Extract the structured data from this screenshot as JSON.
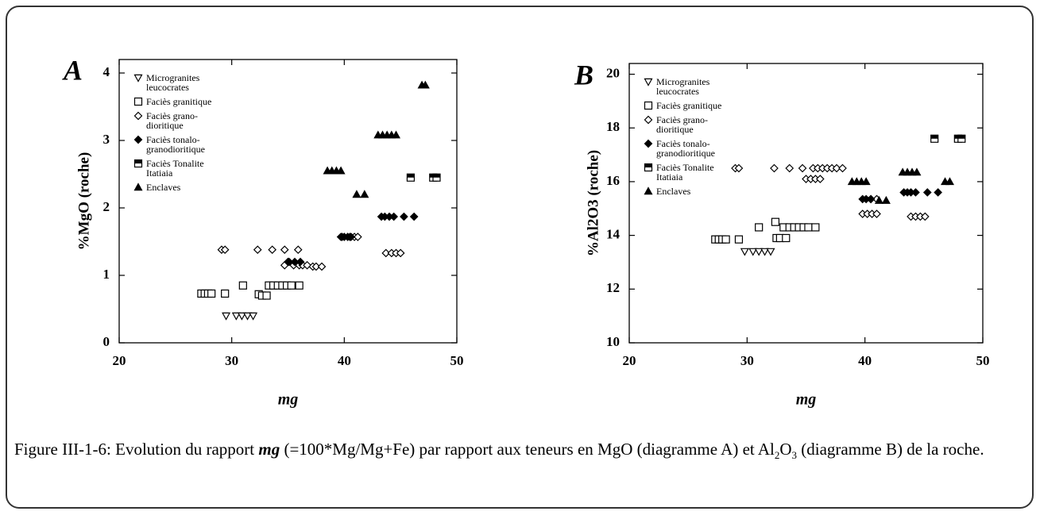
{
  "chart_data": [
    {
      "type": "scatter",
      "label": "A",
      "x_label": "mg",
      "y_label": "%MgO (roche)",
      "xlim": [
        20,
        50
      ],
      "ylim": [
        0,
        4.2
      ],
      "xticks": [
        20,
        30,
        40,
        50
      ],
      "yticks": [
        0,
        1,
        2,
        3,
        4
      ],
      "series": [
        {
          "name": "Microgranites leucocrates",
          "marker": "triangle-down-open",
          "color": "#000000",
          "x": [
            29.5,
            30.4,
            30.9,
            31.4,
            31.9
          ],
          "y": [
            0.4,
            0.4,
            0.4,
            0.4,
            0.4
          ]
        },
        {
          "name": "Faciès granitique",
          "marker": "square-open",
          "color": "#000000",
          "x": [
            27.3,
            27.6,
            27.9,
            28.2,
            29.4,
            31,
            32.4,
            32.7,
            33.1,
            33.3,
            33.7,
            34.1,
            34.5,
            34.9,
            35.3,
            36
          ],
          "y": [
            0.73,
            0.73,
            0.73,
            0.73,
            0.73,
            0.85,
            0.72,
            0.7,
            0.7,
            0.85,
            0.85,
            0.85,
            0.85,
            0.85,
            0.85,
            0.85
          ]
        },
        {
          "name": "Faciès grano-dioritique",
          "marker": "diamond-open",
          "color": "#000000",
          "x": [
            29.1,
            29.4,
            32.3,
            33.6,
            34.7,
            35.9,
            34.7,
            35,
            35.5,
            36,
            36.3,
            36.7,
            37.2,
            37.5,
            38,
            39.8,
            40.5,
            40.9,
            41.2,
            43.7,
            44.2,
            44.6,
            45
          ],
          "y": [
            1.38,
            1.38,
            1.38,
            1.38,
            1.38,
            1.38,
            1.15,
            1.2,
            1.15,
            1.15,
            1.15,
            1.15,
            1.13,
            1.13,
            1.13,
            1.57,
            1.57,
            1.57,
            1.57,
            1.33,
            1.33,
            1.33,
            1.33
          ]
        },
        {
          "name": "Faciès tonalo-granodioritique",
          "marker": "diamond",
          "color": "#000000",
          "x": [
            35.1,
            35.6,
            36.1,
            39.7,
            40,
            40.3,
            40.6,
            43.3,
            43.6,
            44,
            44.4,
            45.3,
            46.2
          ],
          "y": [
            1.2,
            1.2,
            1.2,
            1.57,
            1.57,
            1.57,
            1.57,
            1.87,
            1.87,
            1.87,
            1.87,
            1.87,
            1.87
          ]
        },
        {
          "name": "Faciès Tonalite Itatiaia",
          "marker": "square-half",
          "color": "#000000",
          "x": [
            45.9,
            47.9,
            48.2
          ],
          "y": [
            2.45,
            2.45,
            2.45
          ]
        },
        {
          "name": "Enclaves",
          "marker": "triangle",
          "color": "#000000",
          "x": [
            38.5,
            38.9,
            39.3,
            39.7,
            41.1,
            41.8,
            43,
            43.4,
            43.8,
            44.2,
            44.6,
            46.9,
            47.2
          ],
          "y": [
            2.55,
            2.55,
            2.55,
            2.55,
            2.2,
            2.2,
            3.08,
            3.08,
            3.08,
            3.08,
            3.08,
            3.82,
            3.82
          ]
        }
      ]
    },
    {
      "type": "scatter",
      "label": "B",
      "x_label": "mg",
      "y_label": "%Al2O3 (roche)",
      "xlim": [
        20,
        50
      ],
      "ylim": [
        10,
        20.4
      ],
      "xticks": [
        20,
        30,
        40,
        50
      ],
      "yticks": [
        10,
        12,
        14,
        16,
        18,
        20
      ],
      "series": [
        {
          "name": "Microgranites leucocrates",
          "marker": "triangle-down-open",
          "color": "#000000",
          "x": [
            29.8,
            30.5,
            31,
            31.5,
            32
          ],
          "y": [
            13.4,
            13.4,
            13.4,
            13.4,
            13.4
          ]
        },
        {
          "name": "Faciès granitique",
          "marker": "square-open",
          "color": "#000000",
          "x": [
            27.3,
            27.6,
            27.9,
            28.2,
            29.3,
            31,
            32.4,
            32.5,
            32.8,
            33.3,
            33.1,
            33.6,
            34,
            34.4,
            34.8,
            35.2,
            35.8
          ],
          "y": [
            13.85,
            13.85,
            13.85,
            13.85,
            13.85,
            14.3,
            14.5,
            13.9,
            13.9,
            13.9,
            14.3,
            14.3,
            14.3,
            14.3,
            14.3,
            14.3,
            14.3
          ]
        },
        {
          "name": "Faciès grano-dioritique",
          "marker": "diamond-open",
          "color": "#000000",
          "x": [
            29,
            29.3,
            32.3,
            33.6,
            34.7,
            35.6,
            36,
            36.4,
            36.8,
            37.2,
            37.6,
            38.1,
            35,
            35.4,
            35.8,
            36.2,
            39.8,
            40.2,
            40.6,
            41,
            40.5,
            41,
            43.9,
            44.3,
            44.7,
            45.1
          ],
          "y": [
            16.5,
            16.5,
            16.5,
            16.5,
            16.5,
            16.5,
            16.5,
            16.5,
            16.5,
            16.5,
            16.5,
            16.5,
            16.1,
            16.1,
            16.1,
            16.1,
            14.8,
            14.8,
            14.8,
            14.8,
            15.35,
            15.35,
            14.7,
            14.7,
            14.7,
            14.7
          ]
        },
        {
          "name": "Faciès tonalo-granodioritique",
          "marker": "diamond",
          "color": "#000000",
          "x": [
            39.8,
            40.1,
            40.5,
            43.3,
            43.6,
            43.9,
            44.3,
            45.3,
            46.2
          ],
          "y": [
            15.35,
            15.35,
            15.35,
            15.6,
            15.6,
            15.6,
            15.6,
            15.6,
            15.6
          ]
        },
        {
          "name": "Faciès Tonalite Itatiaia",
          "marker": "square-half",
          "color": "#000000",
          "x": [
            45.9,
            47.9,
            48.2
          ],
          "y": [
            17.6,
            17.6,
            17.6
          ]
        },
        {
          "name": "Enclaves",
          "marker": "triangle",
          "color": "#000000",
          "x": [
            38.9,
            39.3,
            39.7,
            40.1,
            41.2,
            41.8,
            43.2,
            43.6,
            44,
            44.4,
            46.8,
            47.2
          ],
          "y": [
            16,
            16,
            16,
            16,
            15.3,
            15.3,
            16.35,
            16.35,
            16.35,
            16.35,
            16,
            16
          ]
        }
      ]
    }
  ],
  "caption": [
    "Figure III-1-6: Evolution du rapport ",
    "mg",
    " (=100*Mg/Mg+Fe) par rapport aux teneurs en MgO (diagramme A) et Al",
    "2",
    "O",
    "3",
    " (diagramme B) de la roche."
  ]
}
